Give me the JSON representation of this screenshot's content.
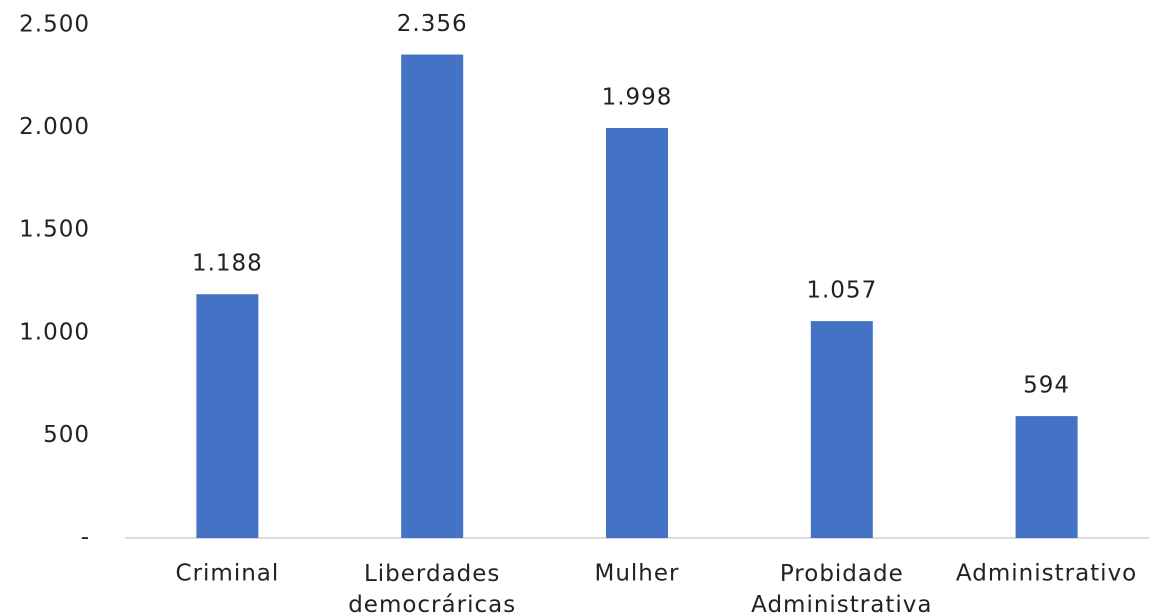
{
  "chart_data": {
    "type": "bar",
    "categories": [
      "Criminal",
      "Liberdades democráricas",
      "Mulher",
      "Probidade Administrativa",
      "Administrativo"
    ],
    "values": [
      1188,
      2356,
      1998,
      1057,
      594
    ],
    "value_labels": [
      "1.188",
      "2.356",
      "1.998",
      "1.057",
      "594"
    ],
    "color": "#4472c4",
    "ylim": [
      0,
      2500
    ],
    "yticks": [
      {
        "value": 0,
        "label": "-"
      },
      500,
      {
        "value": 1000,
        "label": "1.000"
      },
      {
        "value": 1500,
        "label": "1.500"
      },
      {
        "value": 2000,
        "label": "2.000"
      },
      {
        "value": 2500,
        "label": "2.500"
      }
    ],
    "grid": false
  }
}
